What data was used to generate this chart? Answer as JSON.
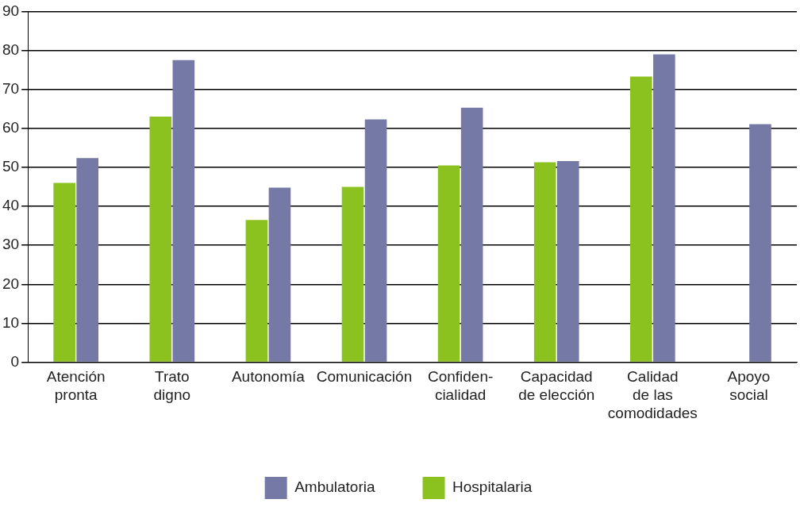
{
  "chart_data": {
    "type": "bar",
    "categories": [
      "Atención\npronta",
      "Trato\ndigno",
      "Autonomía",
      "Comunicación",
      "Confiden-\ncialidad",
      "Capacidad\nde elección",
      "Calidad\nde las\ncomodidades",
      "Apoyo\nsocial"
    ],
    "series": [
      {
        "name": "Hospitalaria",
        "color": "#8cc220",
        "values": [
          46,
          63,
          36.5,
          45,
          50.5,
          51.3,
          73.3,
          null
        ]
      },
      {
        "name": "Ambulatoria",
        "color": "#7579a5",
        "values": [
          52.4,
          77.5,
          44.8,
          62.3,
          65.3,
          51.6,
          79,
          61.1
        ]
      }
    ],
    "ylim": [
      0,
      90
    ],
    "yticks": [
      0,
      10,
      20,
      30,
      40,
      50,
      60,
      70,
      80,
      90
    ],
    "grid": "y",
    "legend": "bottom"
  }
}
